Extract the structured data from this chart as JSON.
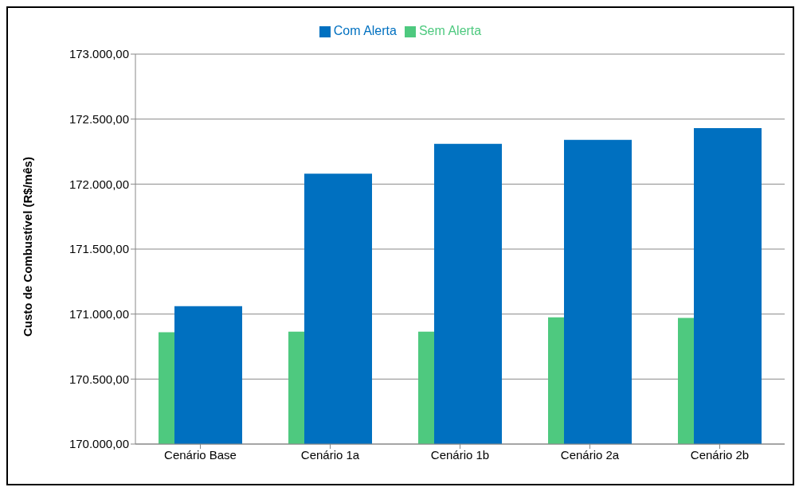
{
  "chart_data": {
    "type": "bar",
    "ylabel": "Custo de Combustível (R$/mês)",
    "categories": [
      "Cenário Base",
      "Cenário 1a",
      "Cenário 1b",
      "Cenário 2a",
      "Cenário 2b"
    ],
    "series": [
      {
        "name": "Sem Alerta",
        "color": "#4ec97f",
        "values": [
          170860,
          170865,
          170865,
          170975,
          170970
        ]
      },
      {
        "name": "Com Alerta",
        "color": "#0070c0",
        "values": [
          171060,
          172080,
          172310,
          172340,
          172430
        ]
      }
    ],
    "ylim": [
      170000,
      173000
    ],
    "yticks": [
      {
        "value": 170000,
        "label": "170.000,00"
      },
      {
        "value": 170500,
        "label": "170.500,00"
      },
      {
        "value": 171000,
        "label": "171.000,00"
      },
      {
        "value": 171500,
        "label": "171.500,00"
      },
      {
        "value": 172000,
        "label": "172.000,00"
      },
      {
        "value": 172500,
        "label": "172.500,00"
      },
      {
        "value": 173000,
        "label": "173.000,00"
      }
    ],
    "grid": "y",
    "legend": "top"
  }
}
